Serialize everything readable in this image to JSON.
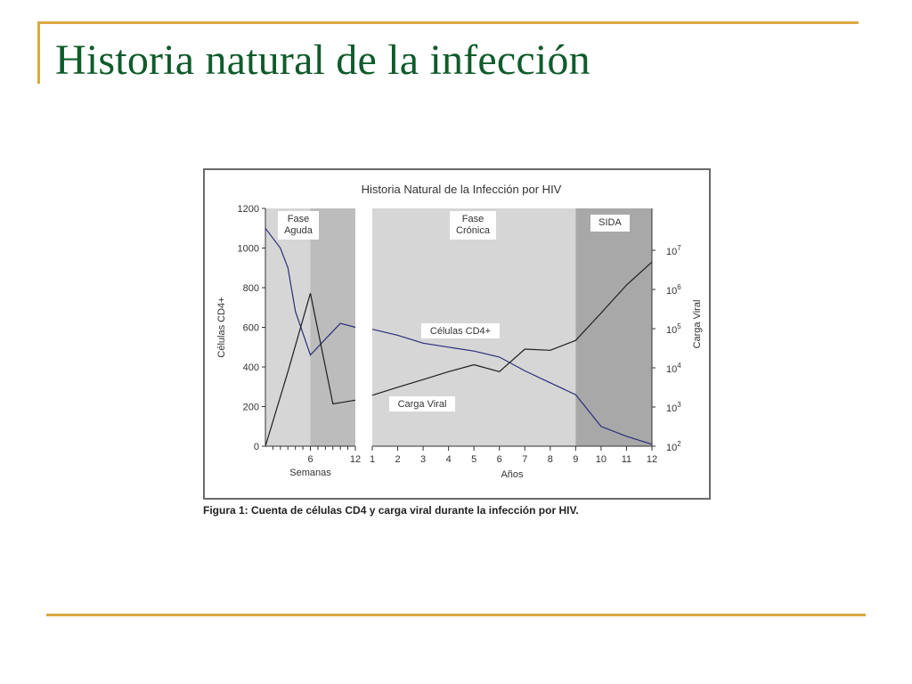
{
  "slide": {
    "title": "Historia natural de la infección",
    "caption": "Figura 1: Cuenta de células CD4 y carga viral durante la infección por HIV."
  },
  "colors": {
    "title": "#0f5b2b",
    "accent_line": "#dba842",
    "plot_bg": "#d6d6d6",
    "shade_mid": "#bcbcbc",
    "shade_dark": "#a8a8a8",
    "cd4_line": "#2b2d7a",
    "viral_line": "#1e1e1e"
  },
  "chart_data": {
    "type": "line",
    "title": "Historia Natural de la Infección por HIV",
    "ylabel": "Células CD4+",
    "y2label": "Carga Viral",
    "ylim": [
      0,
      1200
    ],
    "y_ticks": [
      "0",
      "200",
      "400",
      "600",
      "800",
      "1000",
      "1200"
    ],
    "y2_ticks": [
      {
        "base": "10",
        "exp": "2",
        "value": 100
      },
      {
        "base": "10",
        "exp": "3",
        "value": 1000
      },
      {
        "base": "10",
        "exp": "4",
        "value": 10000
      },
      {
        "base": "10",
        "exp": "5",
        "value": 100000
      },
      {
        "base": "10",
        "exp": "6",
        "value": 1000000
      },
      {
        "base": "10",
        "exp": "7",
        "value": 10000000
      }
    ],
    "y2_scale": "log",
    "panels": [
      {
        "name": "weeks",
        "xlabel": "Semanas",
        "xlim": [
          0,
          12
        ],
        "x_ticks": [
          "6",
          "12"
        ],
        "x_tick_values": [
          6,
          12
        ],
        "minor_ticks": [
          1,
          2,
          3,
          4,
          5,
          7,
          8,
          9,
          10,
          11
        ]
      },
      {
        "name": "years",
        "xlabel": "Años",
        "xlim": [
          1,
          12
        ],
        "x_ticks": [
          "1",
          "2",
          "3",
          "4",
          "5",
          "6",
          "7",
          "8",
          "9",
          "10",
          "11",
          "12"
        ],
        "x_tick_values": [
          1,
          2,
          3,
          4,
          5,
          6,
          7,
          8,
          9,
          10,
          11,
          12
        ]
      }
    ],
    "phases": [
      {
        "label_lines": [
          "Fase",
          "Aguda"
        ],
        "panel": "weeks",
        "x_start": 0,
        "x_end": 6
      },
      {
        "label_lines": [
          "Fase",
          "Crónica"
        ],
        "panel": "years",
        "x_start": 1,
        "x_end": 9
      },
      {
        "label_lines": [
          "SIDA"
        ],
        "panel": "years",
        "x_start": 9,
        "x_end": 12
      }
    ],
    "series": [
      {
        "name": "Células CD4+",
        "axis": "left",
        "weeks": {
          "x": [
            0,
            2,
            3,
            4,
            6,
            8,
            10,
            12
          ],
          "y": [
            1100,
            1000,
            900,
            680,
            460,
            540,
            620,
            600
          ]
        },
        "years": {
          "x": [
            1,
            2,
            3,
            4,
            5,
            6,
            7,
            8,
            9,
            10,
            11,
            12
          ],
          "y": [
            590,
            560,
            520,
            500,
            480,
            450,
            380,
            320,
            260,
            100,
            50,
            10
          ]
        }
      },
      {
        "name": "Carga Viral",
        "axis": "right",
        "weeks": {
          "x": [
            0,
            3,
            6,
            9,
            12
          ],
          "y": [
            100,
            8000,
            800000,
            1200,
            1500
          ]
        },
        "years": {
          "x": [
            1,
            2,
            3,
            4,
            5,
            6,
            7,
            8,
            9,
            10,
            11,
            12
          ],
          "y": [
            2000,
            3200,
            5000,
            8000,
            12000,
            8000,
            30000,
            28000,
            50000,
            250000,
            1300000,
            5000000
          ]
        }
      }
    ]
  }
}
